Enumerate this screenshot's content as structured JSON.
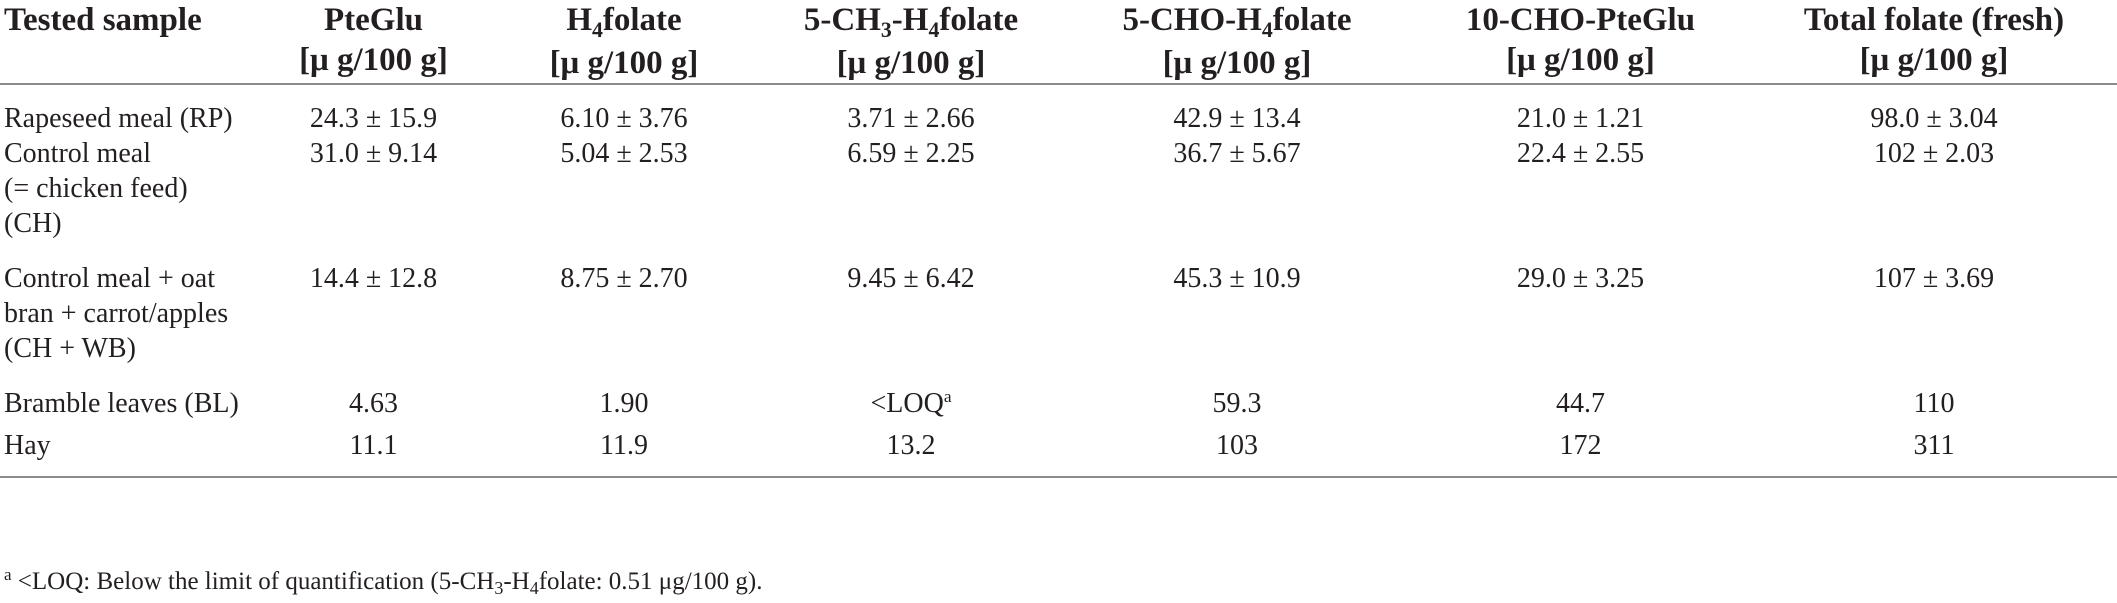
{
  "table": {
    "headers": [
      {
        "text": "Tested sample"
      },
      {
        "text": "PteGlu",
        "unit": "[μ g/100 g]"
      },
      {
        "pre": "H",
        "sub": "4",
        "post": "folate",
        "unit": "[μ g/100 g]"
      },
      {
        "pre": "5-CH",
        "sub": "3",
        "mid": "-H",
        "sub2": "4",
        "post": "folate",
        "unit": "[μ g/100 g]"
      },
      {
        "pre": "5-CHO-H",
        "sub": "4",
        "post": "folate",
        "unit": "[μ g/100 g]"
      },
      {
        "text": "10-CHO-PteGlu",
        "unit": "[μ g/100 g]"
      },
      {
        "text": "Total folate (fresh)",
        "unit": "[μ g/100 g]"
      }
    ],
    "rows": [
      {
        "sample_lines": [
          "Rapeseed meal (RP)"
        ],
        "values": [
          "24.3 ± 15.9",
          "6.10 ± 3.76",
          "3.71 ± 2.66",
          "42.9 ± 13.4",
          "21.0 ± 1.21",
          "98.0 ± 3.04"
        ]
      },
      {
        "sample_lines": [
          "Control meal",
          "(= chicken feed)",
          "(CH)"
        ],
        "values": [
          "31.0 ± 9.14",
          "5.04 ± 2.53",
          "6.59 ± 2.25",
          "36.7 ± 5.67",
          "22.4 ± 2.55",
          "102 ± 2.03"
        ]
      },
      {
        "sample_lines": [
          "Control meal + oat",
          "bran + carrot/apples",
          "(CH + WB)"
        ],
        "values": [
          "14.4 ± 12.8",
          "8.75 ± 2.70",
          "9.45 ± 6.42",
          "45.3 ± 10.9",
          "29.0 ± 3.25",
          "107 ± 3.69"
        ]
      },
      {
        "sample_lines": [
          "Bramble leaves (BL)"
        ],
        "values": [
          "4.63",
          "1.90",
          "<LOQ",
          "59.3",
          "44.7",
          "110"
        ],
        "value_sup": "a"
      },
      {
        "sample_lines": [
          "Hay"
        ],
        "values": [
          "11.1",
          "11.9",
          "13.2",
          "103",
          "172",
          "311"
        ]
      }
    ]
  },
  "footnote": {
    "marker": "a",
    "lead": " <LOQ: Below the limit of quantification (5-CH",
    "sub1": "3",
    "mid": "-H",
    "sub2": "4",
    "tail": "folate: 0.51 μg/100 g)."
  }
}
